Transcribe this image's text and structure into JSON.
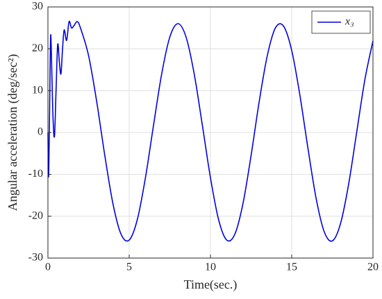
{
  "chart_data": {
    "type": "line",
    "xlabel": "Time(sec.)",
    "ylabel": "Angular acceleration (deg/sec²)",
    "x": [
      0,
      0.05,
      0.15,
      0.2,
      0.3,
      0.4,
      0.5,
      0.6,
      0.7,
      0.8,
      0.9,
      1.0,
      1.15,
      1.3,
      1.45,
      1.6,
      1.8,
      2,
      2.5,
      3,
      3.5,
      4,
      4.5,
      5,
      5.5,
      6,
      6.5,
      7,
      7.5,
      8,
      8.5,
      9,
      9.5,
      10,
      10.5,
      11,
      11.5,
      12,
      12.5,
      13,
      13.5,
      14,
      14.5,
      15,
      15.5,
      16,
      16.5,
      17,
      17.5,
      18,
      18.5,
      19,
      19.5,
      20
    ],
    "series": [
      {
        "name": "x₃",
        "color": "#0000e0",
        "values": [
          0,
          -10,
          20,
          21,
          5,
          -1,
          10,
          21,
          17,
          14,
          20,
          24.5,
          22,
          26.5,
          25,
          25.5,
          26.5,
          25.0,
          18.4,
          7.4,
          -5.5,
          -17.0,
          -24.3,
          -25.7,
          -20.8,
          -10.8,
          1.8,
          14.0,
          22.8,
          26,
          22.8,
          14.0,
          1.8,
          -10.8,
          -20.8,
          -25.7,
          -24.3,
          -17.0,
          -5.5,
          7.4,
          18.4,
          25.0,
          25.4,
          19.6,
          9.0,
          -3.8,
          -15.7,
          -23.7,
          -25.9,
          -21.8,
          -12.4,
          0.1,
          12.6,
          21.9
        ]
      }
    ],
    "xlim": [
      0,
      20
    ],
    "xticks": [
      0,
      5,
      10,
      15,
      20
    ],
    "ylim": [
      -30,
      30
    ],
    "yticks": [
      -30,
      -20,
      -10,
      0,
      10,
      20,
      30
    ],
    "grid": true,
    "legend": "upper right"
  }
}
